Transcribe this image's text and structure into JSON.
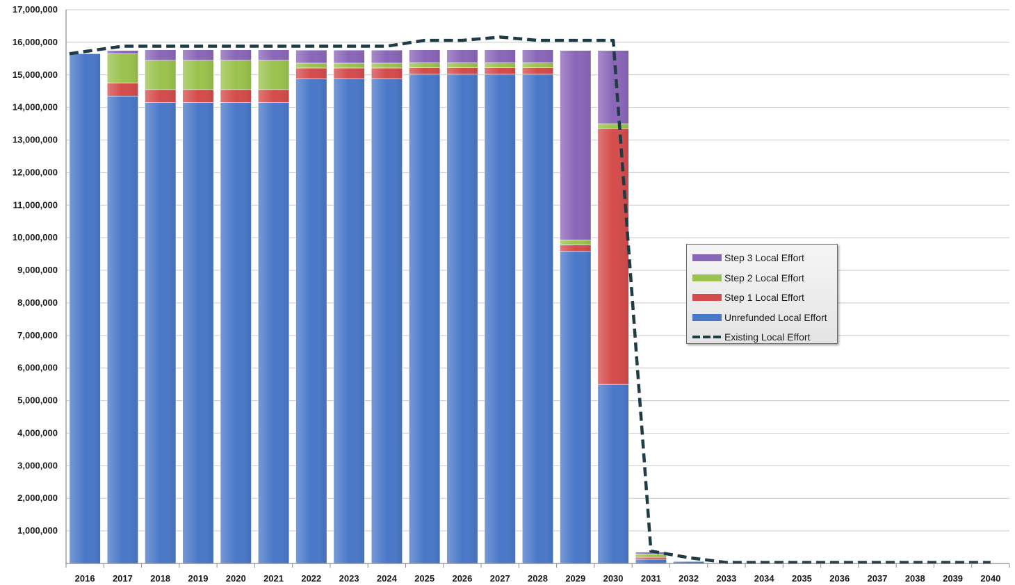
{
  "chart_data": {
    "type": "bar",
    "stacked": true,
    "categories": [
      "2016",
      "2017",
      "2018",
      "2019",
      "2020",
      "2021",
      "2022",
      "2023",
      "2024",
      "2025",
      "2026",
      "2027",
      "2028",
      "2029",
      "2030",
      "2031",
      "2032",
      "2033",
      "2034",
      "2035",
      "2036",
      "2037",
      "2038",
      "2039",
      "2040"
    ],
    "ylim": [
      0,
      17000000
    ],
    "yticks": [
      "1,000,000",
      "2,000,000",
      "3,000,000",
      "4,000,000",
      "5,000,000",
      "6,000,000",
      "7,000,000",
      "8,000,000",
      "9,000,000",
      "10,000,000",
      "11,000,000",
      "12,000,000",
      "13,000,000",
      "14,000,000",
      "15,000,000",
      "16,000,000",
      "17,000,000"
    ],
    "grid": true,
    "legend_position": "center-right",
    "series": [
      {
        "name": "Unrefunded Local Effort",
        "color": "#4a78c8",
        "values": [
          15650000,
          14350000,
          14150000,
          14150000,
          14150000,
          14150000,
          14880000,
          14880000,
          14880000,
          15020000,
          15020000,
          15020000,
          15020000,
          9580000,
          5500000,
          130000,
          60000,
          0,
          0,
          0,
          0,
          0,
          0,
          0,
          0
        ]
      },
      {
        "name": "Step 1 Local Effort",
        "color": "#d44b4b",
        "values": [
          0,
          400000,
          400000,
          400000,
          400000,
          400000,
          330000,
          330000,
          330000,
          200000,
          200000,
          200000,
          200000,
          200000,
          7850000,
          60000,
          0,
          0,
          0,
          0,
          0,
          0,
          0,
          0,
          0
        ]
      },
      {
        "name": "Step 2 Local Effort",
        "color": "#9bc24e",
        "values": [
          0,
          900000,
          900000,
          900000,
          900000,
          900000,
          150000,
          150000,
          150000,
          150000,
          150000,
          150000,
          150000,
          150000,
          150000,
          100000,
          0,
          0,
          0,
          0,
          0,
          0,
          0,
          0,
          0
        ]
      },
      {
        "name": "Step 3 Local Effort",
        "color": "#8a66b8",
        "values": [
          0,
          100000,
          320000,
          320000,
          320000,
          320000,
          400000,
          400000,
          400000,
          400000,
          400000,
          400000,
          400000,
          5820000,
          2250000,
          60000,
          0,
          0,
          0,
          0,
          0,
          0,
          0,
          0,
          0
        ]
      }
    ],
    "line": {
      "name": "Existing Local Effort",
      "color": "#1f3b45",
      "style": "dashed",
      "values": [
        15650000,
        15880000,
        15880000,
        15880000,
        15880000,
        15880000,
        15880000,
        15880000,
        15880000,
        16060000,
        16060000,
        16160000,
        16060000,
        16060000,
        16060000,
        380000,
        180000,
        30000,
        30000,
        30000,
        30000,
        30000,
        30000,
        30000,
        30000
      ]
    }
  }
}
